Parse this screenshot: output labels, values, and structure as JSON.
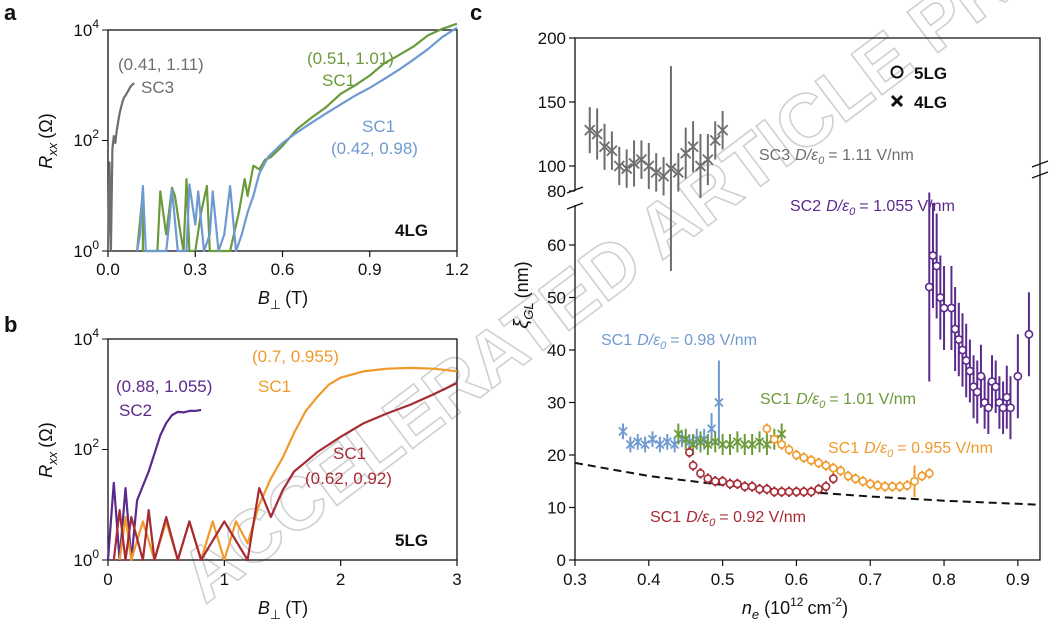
{
  "colors": {
    "sc3": "#6e6e6e",
    "sc2": "#5b2a8c",
    "sc1_101": "#6b9a3a",
    "sc1_098": "#6f9ad0",
    "sc1_0955": "#ef9a2b",
    "sc1_092": "#a62b34",
    "dash": "#111111"
  },
  "watermark": "ACCELERATED ARTICLE PREVIEW",
  "panel_a": {
    "label": "a",
    "ylabel_main": "R",
    "ylabel_sub": "xx",
    "ylabel_unit": "(Ω)",
    "xlabel_main": "B",
    "xlabel_sub": "⊥",
    "xlabel_unit": "(T)",
    "system_label": "4LG",
    "yticks": [
      {
        "base": "10",
        "exp": "0"
      },
      {
        "base": "10",
        "exp": "2"
      },
      {
        "base": "10",
        "exp": "4"
      }
    ],
    "xticks": [
      "0.0",
      "0.3",
      "0.6",
      "0.9",
      "1.2"
    ],
    "ann_sc3_coords": "(0.41, 1.11)",
    "ann_sc3_name": "SC3",
    "ann_green_coords": "(0.51, 1.01)",
    "ann_green_name": "SC1",
    "ann_blue_name": "SC1",
    "ann_blue_coords": "(0.42, 0.98)"
  },
  "panel_b": {
    "label": "b",
    "ylabel_main": "R",
    "ylabel_sub": "xx",
    "ylabel_unit": "(Ω)",
    "xlabel_main": "B",
    "xlabel_sub": "⊥",
    "xlabel_unit": "(T)",
    "system_label": "5LG",
    "yticks": [
      {
        "base": "10",
        "exp": "0"
      },
      {
        "base": "10",
        "exp": "2"
      },
      {
        "base": "10",
        "exp": "4"
      }
    ],
    "xticks": [
      "0",
      "1",
      "2",
      "3"
    ],
    "ann_sc2_coords": "(0.88, 1.055)",
    "ann_sc2_name": "SC2",
    "ann_orange_coords": "(0.7, 0.955)",
    "ann_orange_name": "SC1",
    "ann_red_name": "SC1",
    "ann_red_coords": "(0.62, 0.92)"
  },
  "panel_c": {
    "label": "c",
    "ylabel_main": "ξ",
    "ylabel_sub": "GL",
    "ylabel_unit": "(nm)",
    "xlabel_main": "n",
    "xlabel_sub": "e",
    "xlabel_unit": "(10",
    "xlabel_exp": "12",
    "xlabel_tail": "cm",
    "xlabel_exp2": "-2",
    "xlabel_close": ")",
    "xticks": [
      "0.3",
      "0.4",
      "0.5",
      "0.6",
      "0.7",
      "0.8",
      "0.9"
    ],
    "yticks_top": [
      "80",
      "100",
      "150",
      "200"
    ],
    "yticks_bottom": [
      "0",
      "10",
      "20",
      "30",
      "40",
      "50",
      "60"
    ],
    "legend_5lg": "5LG",
    "legend_4lg": "4LG",
    "label_sc3_name": "SC3",
    "label_sc2_name": "SC2",
    "label_sc1_name": "SC1",
    "label_d": "D/ε",
    "label_d_sub": "0",
    "label_sc3_value": "= 1.11 V/nm",
    "label_sc2_value": "= 1.055 V/nm",
    "label_098_value": "= 0.98 V/nm",
    "label_101_value": "= 1.01 V/nm",
    "label_0955_value": "= 0.955 V/nm",
    "label_092_value": "= 0.92 V/nm"
  },
  "chart_data": [
    {
      "type": "line",
      "panel": "a",
      "xlabel": "B⊥ (T)",
      "ylabel": "Rxx (Ω)",
      "xlim": [
        0,
        1.2
      ],
      "ylim": [
        1,
        10000
      ],
      "yscale": "log",
      "series": [
        {
          "x": [
            0.0,
            0.005,
            0.01,
            0.015,
            0.02,
            0.025,
            0.03,
            0.035,
            0.04,
            0.045,
            0.05,
            0.055,
            0.06,
            0.065,
            0.07,
            0.075,
            0.08,
            0.09
          ],
          "y": [
            1,
            40,
            1,
            70,
            120,
            90,
            150,
            220,
            310,
            400,
            500,
            600,
            650,
            720,
            800,
            900,
            980,
            1100
          ]
        },
        {
          "x": [
            0.1,
            0.12,
            0.12,
            0.14,
            0.17,
            0.18,
            0.2,
            0.22,
            0.23,
            0.25,
            0.26,
            0.27,
            0.28,
            0.3,
            0.32,
            0.34,
            0.35,
            0.36,
            0.38,
            0.4,
            0.42,
            0.45,
            0.47,
            0.48,
            0.5,
            0.52,
            0.54,
            0.56,
            0.6,
            0.65,
            0.7,
            0.75,
            0.8,
            0.85,
            0.9,
            0.95,
            1.0,
            1.05,
            1.1,
            1.15,
            1.2
          ],
          "y": [
            1,
            12,
            1,
            1,
            1,
            12,
            2,
            14,
            10,
            2,
            1,
            20,
            1,
            1,
            5,
            15,
            1,
            1,
            1,
            1,
            1,
            5,
            20,
            10,
            35,
            30,
            45,
            50,
            80,
            160,
            260,
            400,
            700,
            1000,
            1500,
            2500,
            3500,
            5000,
            8000,
            10500,
            13000
          ]
        },
        {
          "x": [
            0.1,
            0.11,
            0.12,
            0.13,
            0.15,
            0.18,
            0.2,
            0.21,
            0.22,
            0.24,
            0.26,
            0.27,
            0.28,
            0.3,
            0.31,
            0.33,
            0.35,
            0.36,
            0.38,
            0.4,
            0.42,
            0.44,
            0.46,
            0.48,
            0.5,
            0.52,
            0.55,
            0.6,
            0.65,
            0.7,
            0.75,
            0.8,
            0.85,
            0.9,
            0.95,
            1.0,
            1.05,
            1.1,
            1.15,
            1.2
          ],
          "y": [
            1,
            2,
            15,
            1,
            1,
            1,
            1,
            3,
            13,
            1,
            1,
            1,
            16,
            3,
            12,
            1,
            2,
            12,
            1,
            2,
            15,
            1,
            2,
            5,
            10,
            25,
            50,
            90,
            140,
            210,
            310,
            450,
            650,
            900,
            1300,
            1900,
            2900,
            4500,
            7500,
            11000
          ]
        }
      ]
    },
    {
      "type": "line",
      "panel": "b",
      "xlabel": "B⊥ (T)",
      "ylabel": "Rxx (Ω)",
      "xlim": [
        0,
        3
      ],
      "ylim": [
        1,
        10000
      ],
      "yscale": "log",
      "series": [
        {
          "x": [
            0.0,
            0.05,
            0.1,
            0.15,
            0.2,
            0.25,
            0.3,
            0.35,
            0.4,
            0.45,
            0.5,
            0.55,
            0.6,
            0.65,
            0.7,
            0.75,
            0.8
          ],
          "y": [
            1,
            25,
            1,
            20,
            1,
            12,
            22,
            40,
            85,
            180,
            300,
            420,
            480,
            470,
            500,
            500,
            520
          ]
        },
        {
          "x": [
            0.1,
            0.15,
            0.2,
            0.3,
            0.4,
            0.5,
            0.6,
            0.7,
            0.8,
            0.9,
            1.0,
            1.1,
            1.2,
            1.3,
            1.4,
            1.5,
            1.6,
            1.7,
            1.8,
            1.9,
            2.0,
            2.2,
            2.4,
            2.6,
            2.8,
            3.0
          ],
          "y": [
            1,
            6,
            1,
            5,
            1,
            5,
            1,
            5,
            1,
            5,
            1,
            5,
            2,
            10,
            30,
            70,
            200,
            500,
            900,
            1500,
            2000,
            2600,
            2900,
            3000,
            2900,
            2600
          ]
        },
        {
          "x": [
            0.05,
            0.1,
            0.15,
            0.2,
            0.3,
            0.35,
            0.4,
            0.5,
            0.6,
            0.7,
            0.8,
            1.0,
            1.2,
            1.3,
            1.4,
            1.5,
            1.6,
            1.7,
            1.8,
            2.0,
            2.2,
            2.4,
            2.6,
            2.8,
            3.0
          ],
          "y": [
            1,
            8,
            1,
            6,
            1,
            8,
            1,
            6,
            1,
            5,
            1,
            5,
            1,
            20,
            6,
            18,
            40,
            60,
            90,
            170,
            300,
            450,
            650,
            1000,
            1600
          ]
        }
      ]
    },
    {
      "type": "scatter",
      "panel": "c",
      "xlabel": "ne (10^12 cm^-2)",
      "ylabel": "ξGL (nm)",
      "xlim": [
        0.3,
        0.93
      ],
      "ylim_bottom": [
        0,
        65
      ],
      "ylim_top": [
        80,
        200
      ],
      "y_axis_broken": true,
      "legend": "top-right",
      "series": [
        {
          "name": "SC3 D/ε0 = 1.11 V/nm",
          "marker": "x",
          "x": [
            0.32,
            0.33,
            0.34,
            0.35,
            0.36,
            0.37,
            0.38,
            0.39,
            0.4,
            0.41,
            0.42,
            0.43,
            0.44,
            0.45,
            0.46,
            0.47,
            0.48,
            0.49,
            0.5
          ],
          "y": [
            128,
            125,
            115,
            112,
            100,
            98,
            102,
            105,
            100,
            95,
            92,
            98,
            95,
            110,
            115,
            100,
            105,
            120,
            128
          ],
          "err": [
            18,
            20,
            18,
            15,
            15,
            15,
            18,
            15,
            18,
            15,
            15,
            80,
            15,
            20,
            20,
            25,
            20,
            15,
            15
          ]
        },
        {
          "name": "SC2 D/ε0 = 1.055 V/nm",
          "marker": "o",
          "x": [
            0.78,
            0.785,
            0.79,
            0.795,
            0.8,
            0.81,
            0.815,
            0.82,
            0.825,
            0.83,
            0.835,
            0.84,
            0.845,
            0.85,
            0.855,
            0.86,
            0.865,
            0.87,
            0.875,
            0.88,
            0.885,
            0.89,
            0.9,
            0.915
          ],
          "y": [
            52,
            58,
            56,
            50,
            48,
            48,
            44,
            42,
            40,
            38,
            36,
            33,
            32,
            35,
            30,
            29,
            34,
            33,
            30,
            29,
            31,
            29,
            35,
            43
          ],
          "err": [
            18,
            10,
            10,
            8,
            8,
            8,
            8,
            7,
            7,
            7,
            6,
            6,
            6,
            6,
            5,
            5,
            5,
            5,
            5,
            5,
            6,
            6,
            8,
            8
          ]
        },
        {
          "name": "SC1 D/ε0 = 0.98 V/nm",
          "marker": "x",
          "x": [
            0.365,
            0.375,
            0.385,
            0.395,
            0.405,
            0.415,
            0.425,
            0.435,
            0.445,
            0.455,
            0.465,
            0.475,
            0.485,
            0.495
          ],
          "y": [
            24.5,
            22,
            22.5,
            22,
            23,
            22,
            22.5,
            22,
            23,
            22.5,
            23,
            23,
            25,
            30
          ],
          "err": [
            1.5,
            1.5,
            1.5,
            1.5,
            1.5,
            1.5,
            1.5,
            1.5,
            1.5,
            1.5,
            2,
            2,
            3,
            8
          ]
        },
        {
          "name": "SC1 D/ε0 = 1.01 V/nm",
          "marker": "x",
          "x": [
            0.44,
            0.45,
            0.46,
            0.47,
            0.48,
            0.49,
            0.5,
            0.51,
            0.52,
            0.53,
            0.54,
            0.55,
            0.56,
            0.57,
            0.58
          ],
          "y": [
            24,
            23,
            22,
            22.5,
            22,
            22.5,
            22,
            22,
            22.5,
            22,
            22,
            22.5,
            22,
            23,
            24
          ],
          "err": [
            2,
            2,
            2,
            2,
            2,
            2,
            2,
            2,
            2,
            2,
            2,
            2,
            2,
            2,
            2
          ]
        },
        {
          "name": "SC1 D/ε0 = 0.955 V/nm",
          "marker": "o",
          "x": [
            0.56,
            0.57,
            0.58,
            0.59,
            0.6,
            0.61,
            0.62,
            0.63,
            0.64,
            0.65,
            0.66,
            0.67,
            0.68,
            0.69,
            0.7,
            0.71,
            0.72,
            0.73,
            0.74,
            0.75,
            0.76,
            0.77,
            0.78
          ],
          "y": [
            25,
            23,
            22,
            21,
            20,
            19.5,
            19,
            18.5,
            18,
            17.5,
            17,
            16,
            15.5,
            15,
            14.5,
            14.2,
            14,
            14,
            14,
            14.2,
            15,
            16,
            16.5
          ],
          "err": [
            1,
            1,
            1,
            1,
            1,
            1,
            1,
            1,
            1,
            1,
            1,
            1,
            1,
            1,
            1,
            1,
            1,
            1,
            1,
            1,
            3,
            1,
            1
          ]
        },
        {
          "name": "SC1 D/ε0 = 0.92 V/nm",
          "marker": "o",
          "x": [
            0.455,
            0.46,
            0.47,
            0.48,
            0.49,
            0.5,
            0.51,
            0.52,
            0.53,
            0.54,
            0.55,
            0.56,
            0.57,
            0.58,
            0.59,
            0.6,
            0.61,
            0.62,
            0.63,
            0.64,
            0.65
          ],
          "y": [
            20.5,
            18,
            16.5,
            15.5,
            15,
            15,
            14.5,
            14.5,
            14,
            14,
            13.5,
            13.5,
            13,
            13,
            13,
            13,
            13,
            13,
            13.5,
            14,
            15.5
          ],
          "err": [
            1,
            1,
            1,
            1,
            1,
            1,
            1,
            1,
            1,
            1,
            1,
            1,
            1,
            1,
            1,
            1,
            1,
            1,
            1,
            1,
            1
          ]
        }
      ],
      "dashed_curve": {
        "x": [
          0.3,
          0.4,
          0.5,
          0.6,
          0.7,
          0.8,
          0.9,
          0.93
        ],
        "y": [
          18.5,
          16,
          14.3,
          13.1,
          12.1,
          11.3,
          10.7,
          10.5
        ]
      }
    }
  ]
}
